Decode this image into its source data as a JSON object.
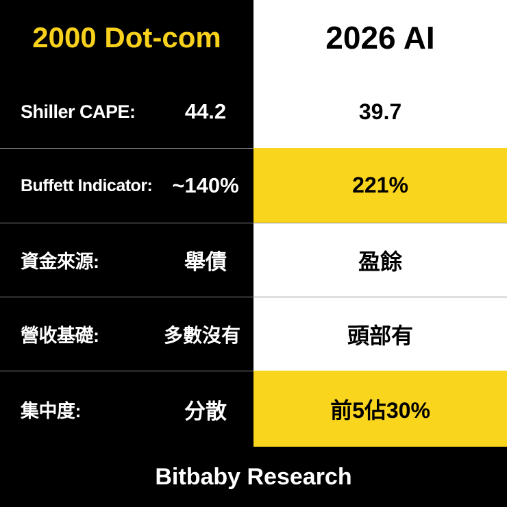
{
  "header": {
    "left": "2000 Dot-com",
    "right": "2026 AI"
  },
  "rows": [
    {
      "label": "Shiller CAPE:",
      "then": "44.2",
      "now": "39.7"
    },
    {
      "label": "Buffett Indicator:",
      "then": "~140%",
      "now": "221%"
    },
    {
      "label": "資金來源:",
      "then": "舉債",
      "now": "盈餘"
    },
    {
      "label": "營收基礎:",
      "then": "多數沒有",
      "now": "頭部有"
    },
    {
      "label": "集中度:",
      "then": "分散",
      "now": "前5佔30%"
    }
  ],
  "footer": "Bitbaby Research"
}
